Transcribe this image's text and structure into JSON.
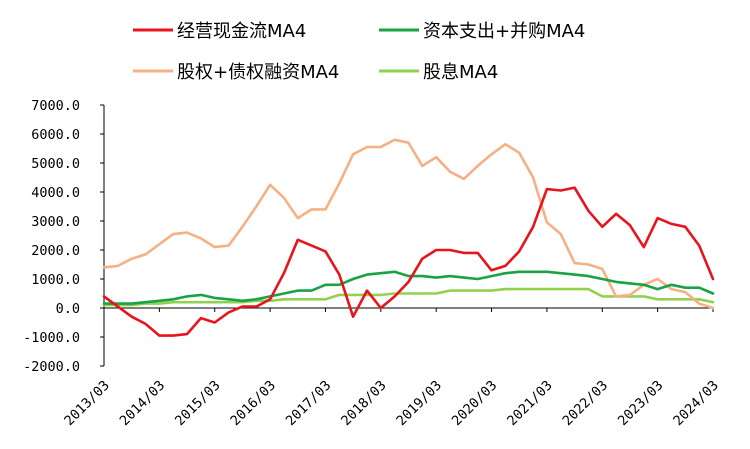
{
  "chart_data": {
    "type": "line",
    "title": "",
    "xlabel": "",
    "ylabel": "",
    "ylim": [
      -2000,
      7000
    ],
    "y_ticks": [
      "7000.0",
      "6000.0",
      "5000.0",
      "4000.0",
      "3000.0",
      "2000.0",
      "1000.0",
      "0.0",
      "-1000.0",
      "-2000.0"
    ],
    "x_tick_labels": [
      "2013/03",
      "2014/03",
      "2015/03",
      "2016/03",
      "2017/03",
      "2018/03",
      "2019/03",
      "2020/03",
      "2021/03",
      "2022/03",
      "2023/03",
      "2024/03"
    ],
    "grid": false,
    "legend_position": "top",
    "x": [
      "2013/03",
      "2013/06",
      "2013/09",
      "2013/12",
      "2014/03",
      "2014/06",
      "2014/09",
      "2014/12",
      "2015/03",
      "2015/06",
      "2015/09",
      "2015/12",
      "2016/03",
      "2016/06",
      "2016/09",
      "2016/12",
      "2017/03",
      "2017/06",
      "2017/09",
      "2017/12",
      "2018/03",
      "2018/06",
      "2018/09",
      "2018/12",
      "2019/03",
      "2019/06",
      "2019/09",
      "2019/12",
      "2020/03",
      "2020/06",
      "2020/09",
      "2020/12",
      "2021/03",
      "2021/06",
      "2021/09",
      "2021/12",
      "2022/03",
      "2022/06",
      "2022/09",
      "2022/12",
      "2023/03",
      "2023/06",
      "2023/09",
      "2023/12",
      "2024/03"
    ],
    "series": [
      {
        "name": "经营现金流MA4",
        "color": "#e8141b",
        "values": [
          400,
          50,
          -300,
          -550,
          -950,
          -950,
          -900,
          -350,
          -500,
          -150,
          50,
          50,
          300,
          1200,
          2350,
          2150,
          1950,
          1150,
          -300,
          600,
          0,
          400,
          900,
          1700,
          2000,
          2000,
          1900,
          1900,
          1300,
          1450,
          1950,
          2800,
          4100,
          4050,
          4150,
          3350,
          2800,
          3250,
          2850,
          2100,
          3100,
          2900,
          2800,
          2150,
          1000
        ]
      },
      {
        "name": "资本支出+并购MA4",
        "color": "#1aa345",
        "values": [
          150,
          150,
          150,
          200,
          250,
          300,
          400,
          450,
          350,
          300,
          250,
          300,
          400,
          500,
          600,
          600,
          800,
          800,
          1000,
          1150,
          1200,
          1250,
          1100,
          1100,
          1050,
          1100,
          1050,
          1000,
          1100,
          1200,
          1250,
          1250,
          1250,
          1200,
          1150,
          1100,
          1000,
          900,
          850,
          800,
          650,
          800,
          700,
          700,
          500
        ]
      },
      {
        "name": "股权+债权融资MA4",
        "color": "#f5b184",
        "values": [
          1400,
          1450,
          1700,
          1850,
          2200,
          2550,
          2600,
          2400,
          2100,
          2150,
          2800,
          3500,
          4250,
          3800,
          3100,
          3400,
          3400,
          4300,
          5300,
          5550,
          5550,
          5800,
          5700,
          4900,
          5200,
          4700,
          4450,
          4900,
          5300,
          5650,
          5350,
          4500,
          2950,
          2550,
          1550,
          1500,
          1350,
          400,
          450,
          800,
          1000,
          650,
          550,
          150,
          0
        ]
      },
      {
        "name": "股息MA4",
        "color": "#92d050",
        "values": [
          100,
          100,
          100,
          150,
          150,
          200,
          200,
          200,
          200,
          200,
          200,
          250,
          250,
          300,
          300,
          300,
          300,
          450,
          450,
          450,
          450,
          500,
          500,
          500,
          500,
          600,
          600,
          600,
          600,
          650,
          650,
          650,
          650,
          650,
          650,
          650,
          400,
          400,
          400,
          400,
          300,
          300,
          300,
          300,
          200
        ]
      }
    ]
  }
}
